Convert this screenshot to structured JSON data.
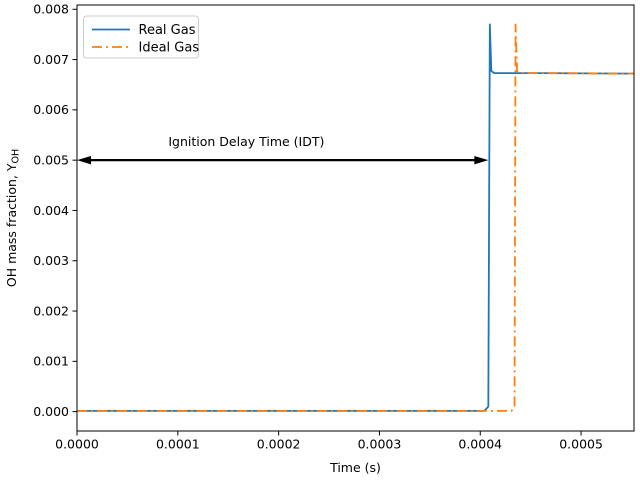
{
  "chart_data": {
    "type": "line",
    "title": "",
    "xlabel": "Time (s)",
    "ylabel_prefix": "OH mass fraction, Y",
    "ylabel_sub": "OH",
    "xlim": [
      0,
      0.0005525
    ],
    "ylim": [
      -0.000385,
      0.008085
    ],
    "grid": false,
    "xticks": [
      0.0,
      0.0001,
      0.0002,
      0.0003,
      0.0004,
      0.0005
    ],
    "xtick_labels": [
      "0.0000",
      "0.0001",
      "0.0002",
      "0.0003",
      "0.0004",
      "0.0005"
    ],
    "yticks": [
      0.0,
      0.001,
      0.002,
      0.003,
      0.004,
      0.005,
      0.006,
      0.007,
      0.008
    ],
    "ytick_labels": [
      "0.000",
      "0.001",
      "0.002",
      "0.003",
      "0.004",
      "0.005",
      "0.006",
      "0.007",
      "0.008"
    ],
    "series": [
      {
        "name": "Real Gas",
        "color": "#1f77b4",
        "style": "solid",
        "line_width": 1.8,
        "ignition_delay_time_s": 0.00041,
        "peak_value": 0.0077,
        "plateau_value": 0.00673,
        "x": [
          0,
          0.000404,
          0.000408,
          0.0004095,
          0.000411,
          0.000414,
          0.00046,
          0.0005525
        ],
        "y": [
          1.5e-05,
          1.5e-05,
          0.0001,
          0.0077,
          0.00677,
          0.00673,
          0.00673,
          0.00672
        ]
      },
      {
        "name": "Ideal Gas",
        "color": "#ff7f0e",
        "style": "dashdot",
        "line_width": 1.8,
        "ignition_delay_time_s": 0.000435,
        "peak_value": 0.0077,
        "plateau_value": 0.00673,
        "x": [
          0,
          0.000431,
          0.000434,
          0.000435,
          0.0004365,
          0.00044,
          0.00048,
          0.0005525
        ],
        "y": [
          1.5e-05,
          1.5e-05,
          0.0001,
          0.0077,
          0.00677,
          0.00673,
          0.00673,
          0.00672
        ]
      }
    ],
    "annotation": {
      "text": "Ignition Delay Time (IDT)",
      "arrow_y": 0.005,
      "arrow_x_start": 0.0,
      "arrow_x_end": 0.000408,
      "label_center_x": 0.000168,
      "label_y": 0.00528,
      "color": "#000000"
    },
    "legend": {
      "position": "upper-left",
      "border_color": "#cccccc",
      "background": "#ffffff",
      "entries": [
        {
          "label": "Real Gas",
          "color": "#1f77b4",
          "style": "solid"
        },
        {
          "label": "Ideal Gas",
          "color": "#ff7f0e",
          "style": "dashdot"
        }
      ]
    }
  }
}
